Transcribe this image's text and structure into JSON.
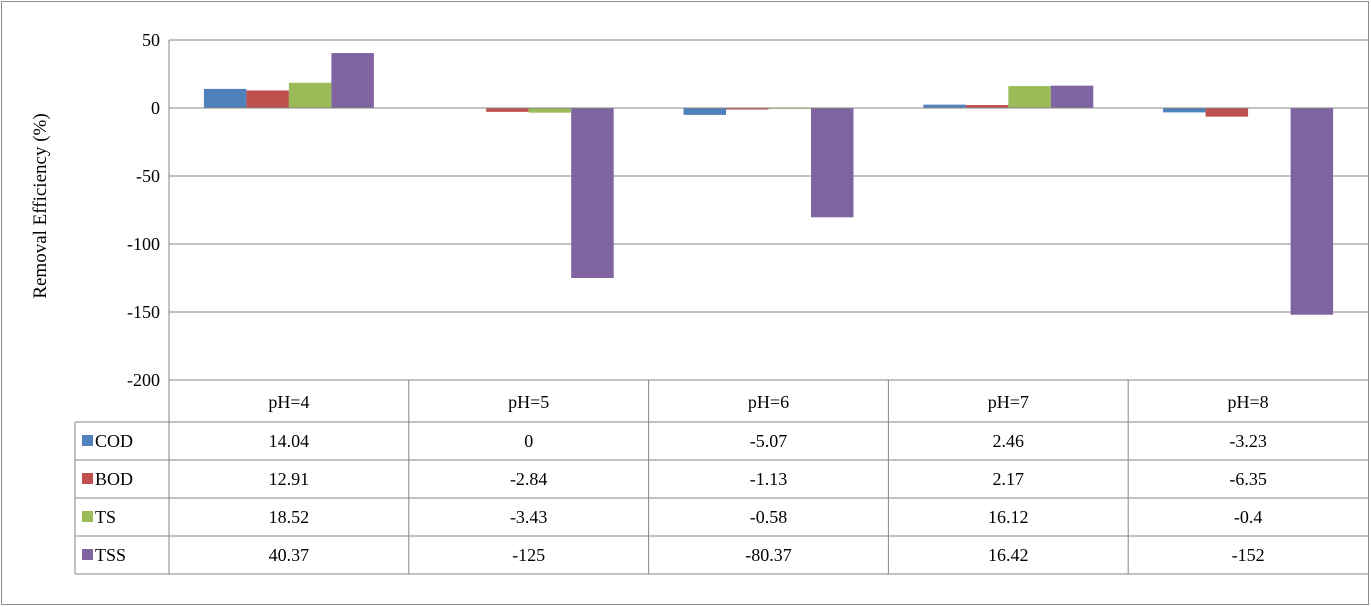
{
  "chart_data": {
    "type": "bar",
    "title": "",
    "xlabel": "",
    "ylabel": "Removal Efficiency (%)",
    "ylim": [
      -200,
      50
    ],
    "yticks": [
      50,
      0,
      -50,
      -100,
      -150,
      -200
    ],
    "grid": true,
    "legend": "data-table-left",
    "categories": [
      "pH=4",
      "pH=5",
      "pH=6",
      "pH=7",
      "pH=8"
    ],
    "series": [
      {
        "name": "COD",
        "color": "#4f81bd",
        "values": [
          14.04,
          0,
          -5.07,
          2.46,
          -3.23
        ],
        "labels": [
          "14.04",
          "0",
          "-5.07",
          "2.46",
          "-3.23"
        ]
      },
      {
        "name": "BOD",
        "color": "#c0504d",
        "values": [
          12.91,
          -2.84,
          -1.13,
          2.17,
          -6.35
        ],
        "labels": [
          "12.91",
          "-2.84",
          "-1.13",
          "2.17",
          "-6.35"
        ]
      },
      {
        "name": "TS",
        "color": "#9bbb59",
        "values": [
          18.52,
          -3.43,
          -0.58,
          16.12,
          -0.4
        ],
        "labels": [
          "18.52",
          "-3.43",
          "-0.58",
          "16.12",
          "-0.4"
        ]
      },
      {
        "name": "TSS",
        "color": "#8064a2",
        "values": [
          40.37,
          -125,
          -80.37,
          16.42,
          -152
        ],
        "labels": [
          "40.37",
          "-125",
          "-80.37",
          "16.42",
          "-152"
        ]
      }
    ]
  }
}
